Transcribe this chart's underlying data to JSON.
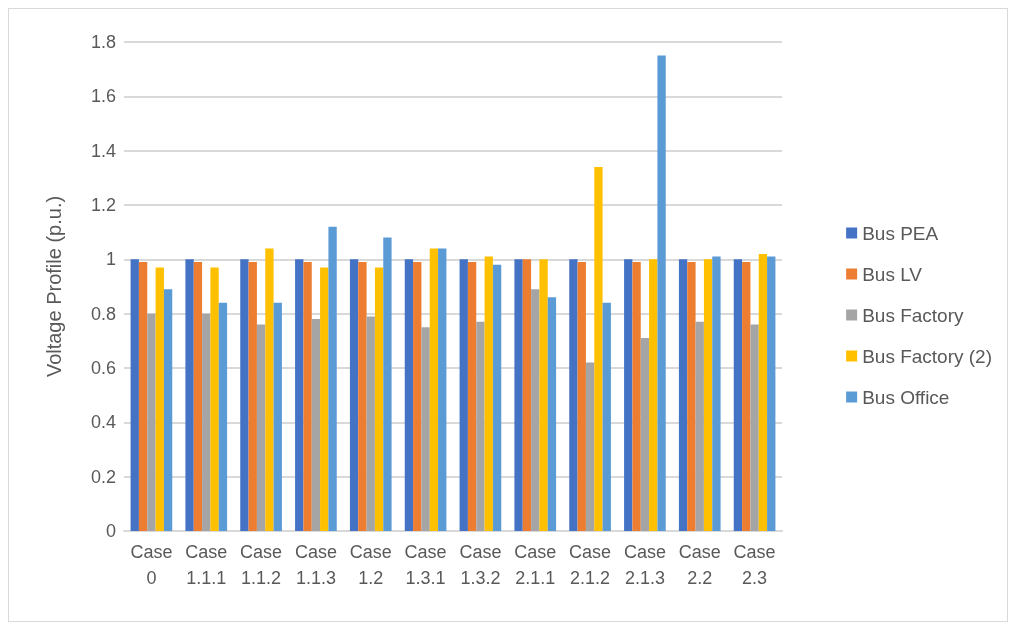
{
  "chart_data": {
    "type": "bar",
    "ylabel": "Voltage Profile (p.u.)",
    "categories": [
      "Case 0",
      "Case 1.1.1",
      "Case 1.1.2",
      "Case 1.1.3",
      "Case 1.2",
      "Case 1.3.1",
      "Case 1.3.2",
      "Case 2.1.1",
      "Case 2.1.2",
      "Case 2.1.3",
      "Case 2.2",
      "Case 2.3"
    ],
    "series": [
      {
        "name": "Bus PEA",
        "color": "#4472c4",
        "values": [
          1,
          1,
          1,
          1,
          1,
          1,
          1,
          1,
          1,
          1,
          1,
          1
        ]
      },
      {
        "name": "Bus LV",
        "color": "#ed7d31",
        "values": [
          0.99,
          0.99,
          0.99,
          0.99,
          0.99,
          0.99,
          0.99,
          1.0,
          0.99,
          0.99,
          0.99,
          0.99
        ]
      },
      {
        "name": "Bus Factory",
        "color": "#a5a5a5",
        "values": [
          0.8,
          0.8,
          0.76,
          0.78,
          0.79,
          0.75,
          0.77,
          0.89,
          0.62,
          0.71,
          0.77,
          0.76
        ]
      },
      {
        "name": "Bus Factory (2)",
        "color": "#ffc000",
        "values": [
          0.97,
          0.97,
          1.04,
          0.97,
          0.97,
          1.04,
          1.01,
          1.0,
          1.34,
          1.0,
          1.0,
          1.02
        ]
      },
      {
        "name": "Bus Office",
        "color": "#5b9bd5",
        "values": [
          0.89,
          0.84,
          0.84,
          1.12,
          1.08,
          1.04,
          0.98,
          0.86,
          0.84,
          1.75,
          1.01,
          1.01
        ]
      }
    ],
    "ylim": [
      0,
      1.8
    ],
    "yticks": [
      0,
      0.2,
      0.4,
      0.6,
      0.8,
      1,
      1.2,
      1.4,
      1.6,
      1.8
    ],
    "grid": "y",
    "legend": "right"
  }
}
